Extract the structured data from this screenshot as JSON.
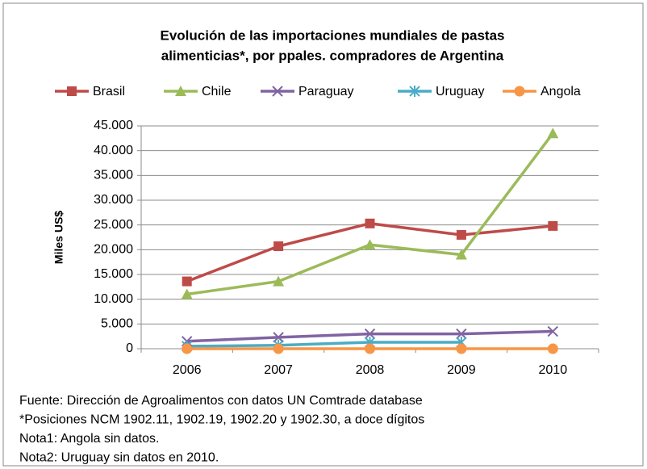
{
  "chart_data": {
    "type": "line",
    "title": [
      "Evolución de las importaciones mundiales de pastas",
      "alimenticias*, por ppales. compradores de Argentina"
    ],
    "y_label": "Miles US$",
    "categories": [
      "2006",
      "2007",
      "2008",
      "2009",
      "2010"
    ],
    "series": [
      {
        "name": "Brasil",
        "color": "#be4b48",
        "marker": "square",
        "values": [
          13600,
          20700,
          25300,
          23000,
          24800
        ]
      },
      {
        "name": "Chile",
        "color": "#9bbb59",
        "marker": "triangle",
        "values": [
          11000,
          13600,
          21000,
          19000,
          43500
        ]
      },
      {
        "name": "Paraguay",
        "color": "#8064a2",
        "marker": "x",
        "values": [
          1500,
          2300,
          3000,
          3000,
          3500
        ]
      },
      {
        "name": "Uruguay",
        "color": "#4bacc6",
        "marker": "star",
        "values": [
          500,
          700,
          1300,
          1300,
          null
        ]
      },
      {
        "name": "Angola",
        "color": "#f79646",
        "marker": "circle",
        "values": [
          0,
          0,
          0,
          0,
          0
        ]
      }
    ],
    "ylim": [
      0,
      45000
    ],
    "yticks": [
      0,
      {
        "value": 5000,
        "label": "5.000"
      },
      {
        "value": 10000,
        "label": "10.000"
      },
      {
        "value": 15000,
        "label": "15.000"
      },
      {
        "value": 20000,
        "label": "20.000"
      },
      {
        "value": 25000,
        "label": "25.000"
      },
      {
        "value": 30000,
        "label": "30.000"
      },
      {
        "value": 35000,
        "label": "35.000"
      },
      {
        "value": 40000,
        "label": "40.000"
      },
      {
        "value": 45000,
        "label": "45.000"
      }
    ],
    "grid": true,
    "legend": "top",
    "notes": [
      "Fuente: Dirección de Agroalimentos con datos UN Comtrade database",
      "*Posiciones NCM 1902.11, 1902.19, 1902.20 y 1902.30, a doce dígitos",
      "Nota1: Angola sin datos.",
      "Nota2: Uruguay sin datos en 2010."
    ]
  }
}
